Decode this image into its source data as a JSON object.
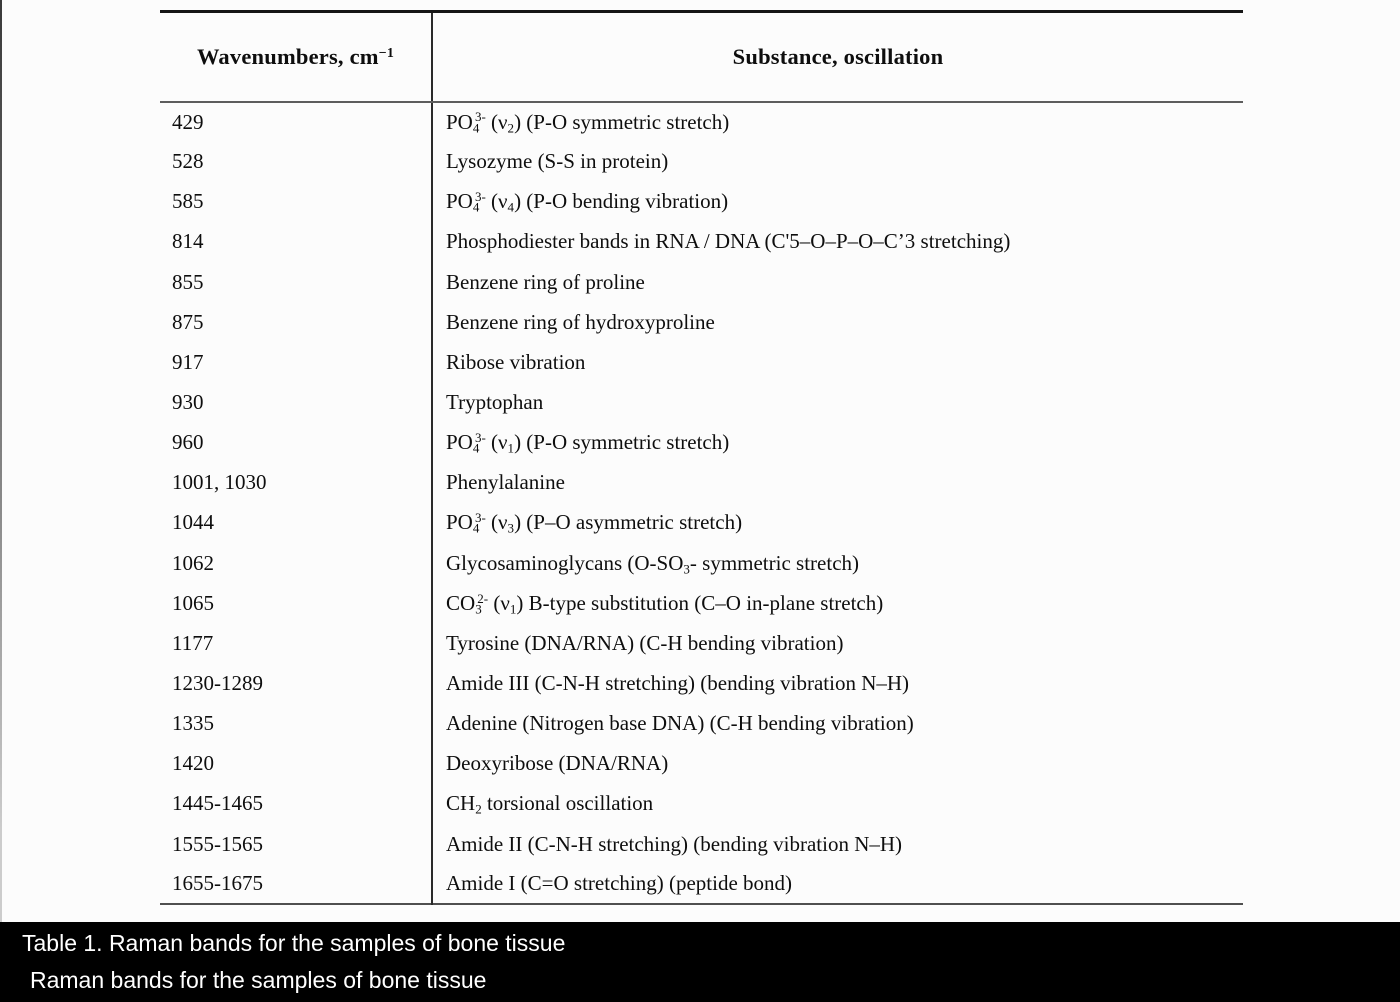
{
  "colors": {
    "page_bg": "#fcfcfc",
    "text": "#0e0e0e",
    "table_top_rule": "#161616",
    "table_inner_rule": "#5d5d5d",
    "caption_bar_bg": "#000000",
    "caption_text": "#ffffff"
  },
  "table": {
    "headers": {
      "wavenumbers_html": "Wavenumbers, cm<sup>−1</sup>",
      "substance": "Substance, oscillation"
    },
    "rows": [
      {
        "wavenumber": "429",
        "substance_html": "PO<sub>4</sub><sup>3-</sup> (ν<sub>2</sub>) (P-O symmetric stretch)"
      },
      {
        "wavenumber": "528",
        "substance_html": "Lysozyme (S-S in protein)"
      },
      {
        "wavenumber": "585",
        "substance_html": "PO<sub>4</sub><sup>3-</sup> (ν<sub>4</sub>) (P-O bending vibration)"
      },
      {
        "wavenumber": "814",
        "substance_html": "Phosphodiester bands in RNA / DNA (C'5–O–P–O–C’3 stretching)"
      },
      {
        "wavenumber": "855",
        "substance_html": "Benzene ring of proline"
      },
      {
        "wavenumber": "875",
        "substance_html": "Benzene ring of hydroxyproline"
      },
      {
        "wavenumber": "917",
        "substance_html": "Ribose vibration"
      },
      {
        "wavenumber": "930",
        "substance_html": "Tryptophan"
      },
      {
        "wavenumber": "960",
        "substance_html": "PO<sub>4</sub><sup>3-</sup> (ν<sub>1</sub>) (P-O symmetric stretch)"
      },
      {
        "wavenumber": "1001, 1030",
        "substance_html": "Phenylalanine"
      },
      {
        "wavenumber": "1044",
        "substance_html": "PO<sub>4</sub><sup>3-</sup> (ν<sub>3</sub>) (P–O asymmetric stretch)"
      },
      {
        "wavenumber": "1062",
        "substance_html": "Glycosaminoglycans (O-SO<sub>3</sub>- symmetric stretch)"
      },
      {
        "wavenumber": "1065",
        "substance_html": "CO<sub>3</sub><sup>2-</sup> (ν<sub>1</sub>) B-type substitution (C–O in-plane stretch)"
      },
      {
        "wavenumber": "1177",
        "substance_html": "Tyrosine (DNA/RNA) (C-H bending vibration)"
      },
      {
        "wavenumber": "1230-1289",
        "substance_html": "Amide III (C-N-H stretching) (bending vibration N–H)"
      },
      {
        "wavenumber": "1335",
        "substance_html": "Adenine (Nitrogen base DNA) (C-H bending vibration)"
      },
      {
        "wavenumber": "1420",
        "substance_html": "Deoxyribose (DNA/RNA)"
      },
      {
        "wavenumber": "1445-1465",
        "substance_html": "CH<sub>2</sub> torsional oscillation"
      },
      {
        "wavenumber": "1555-1565",
        "substance_html": "Amide II (C-N-H stretching) (bending vibration N–H)"
      },
      {
        "wavenumber": "1655-1675",
        "substance_html": "Amide I (C=O stretching) (peptide bond)"
      }
    ]
  },
  "captions": {
    "line1": "Table 1. Raman bands for the samples of bone tissue",
    "line2": "Raman bands for the samples of bone tissue"
  }
}
